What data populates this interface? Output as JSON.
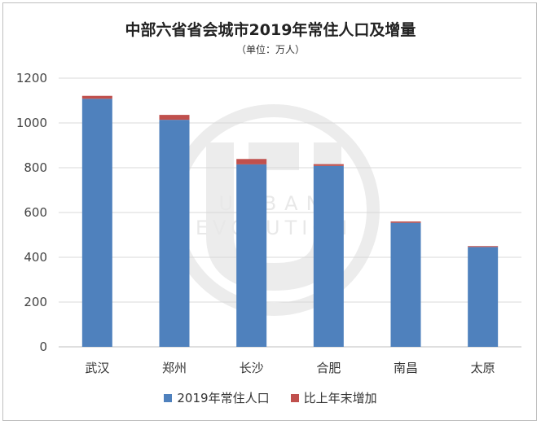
{
  "chart_data": {
    "type": "bar",
    "title": "中部六省省会城市2019年常住人口及增量",
    "subtitle": "（单位：万人）",
    "categories": [
      "武汉",
      "郑州",
      "长沙",
      "合肥",
      "南昌",
      "太原"
    ],
    "series": [
      {
        "name": "2019年常住人口",
        "values": [
          1108,
          1014,
          815,
          808,
          554,
          446
        ],
        "color": "#4f81bd"
      },
      {
        "name": "比上年末增加",
        "values": [
          13,
          22,
          24,
          8,
          6,
          4
        ],
        "color": "#c0504d"
      }
    ],
    "stacked": true,
    "ylim": [
      0,
      1200
    ],
    "yticks": [
      0,
      200,
      400,
      600,
      800,
      1000,
      1200
    ],
    "grid": true,
    "legend_position": "bottom"
  },
  "watermark": {
    "line1": "URBAN",
    "line2": "EVOLUTION"
  }
}
